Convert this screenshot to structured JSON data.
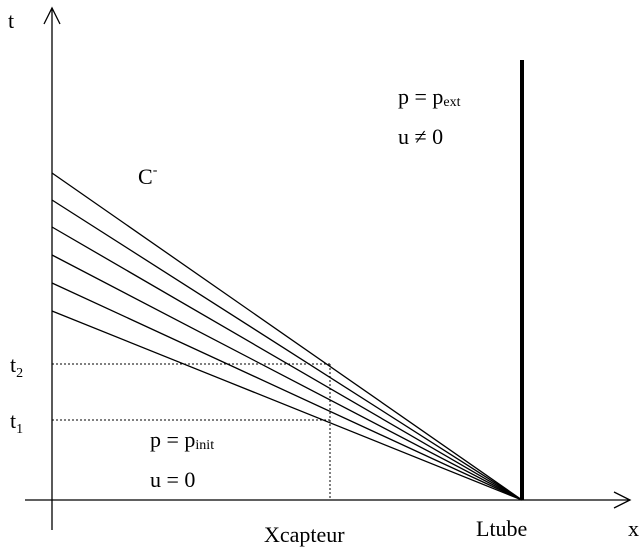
{
  "axes": {
    "t_label": "t",
    "x_label": "x"
  },
  "ticks": {
    "t2": {
      "main": "t",
      "sub": "2"
    },
    "t1": {
      "main": "t",
      "sub": "1"
    },
    "xcapteur": "Xcapteur",
    "ltube": "Ltube"
  },
  "regions": {
    "outside": {
      "pressure": {
        "main": "p = p",
        "sub": "ext"
      },
      "velocity": "u ≠ 0"
    },
    "inside": {
      "pressure": {
        "main": "p = p",
        "sub": "init"
      },
      "velocity": "u = 0"
    }
  },
  "characteristic": {
    "main": "C",
    "sup": "-"
  }
}
